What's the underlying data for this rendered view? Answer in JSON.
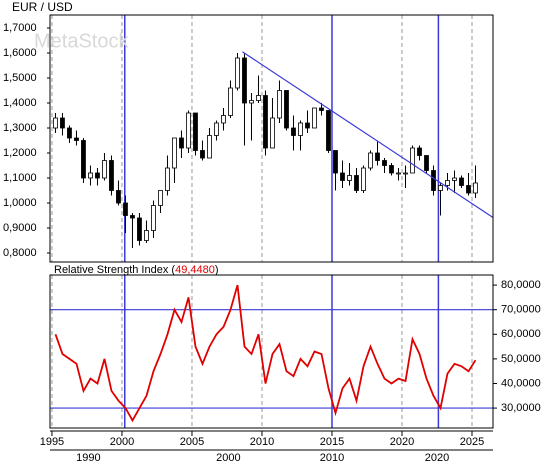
{
  "chart_data": [
    {
      "type": "candlestick",
      "title": "EUR / USD",
      "watermark": "MetaStock",
      "x": [
        1995.25,
        1995.75,
        1996.25,
        1996.75,
        1997.25,
        1997.75,
        1998.25,
        1998.75,
        1999.25,
        1999.75,
        2000.25,
        2000.75,
        2001.25,
        2001.75,
        2002.25,
        2002.75,
        2003.25,
        2003.75,
        2004.25,
        2004.75,
        2005.25,
        2005.75,
        2006.25,
        2006.75,
        2007.25,
        2007.75,
        2008.25,
        2008.75,
        2009.25,
        2009.75,
        2010.25,
        2010.75,
        2011.25,
        2011.75,
        2012.25,
        2012.75,
        2013.25,
        2013.75,
        2014.25,
        2014.75,
        2015.25,
        2015.75,
        2016.25,
        2016.75,
        2017.25,
        2017.75,
        2018.25,
        2018.75,
        2019.25,
        2019.75,
        2020.25,
        2020.75,
        2021.25,
        2021.75,
        2022.25,
        2022.75,
        2023.25,
        2023.75,
        2024.25,
        2024.75,
        2025.25
      ],
      "open": [
        1.3,
        1.34,
        1.3,
        1.26,
        1.25,
        1.1,
        1.12,
        1.1,
        1.17,
        1.05,
        1.0,
        0.95,
        0.94,
        0.85,
        0.89,
        0.99,
        1.05,
        1.14,
        1.26,
        1.22,
        1.36,
        1.21,
        1.18,
        1.27,
        1.32,
        1.35,
        1.46,
        1.58,
        1.4,
        1.41,
        1.43,
        1.22,
        1.34,
        1.45,
        1.3,
        1.27,
        1.32,
        1.3,
        1.38,
        1.37,
        1.21,
        1.12,
        1.09,
        1.11,
        1.05,
        1.14,
        1.2,
        1.17,
        1.15,
        1.12,
        1.12,
        1.12,
        1.22,
        1.19,
        1.13,
        1.05,
        1.07,
        1.09,
        1.1,
        1.07,
        1.04
      ],
      "high": [
        1.36,
        1.36,
        1.31,
        1.29,
        1.26,
        1.15,
        1.14,
        1.2,
        1.19,
        1.09,
        1.03,
        0.96,
        0.96,
        0.93,
        1.01,
        1.05,
        1.19,
        1.26,
        1.29,
        1.37,
        1.36,
        1.25,
        1.3,
        1.33,
        1.38,
        1.49,
        1.6,
        1.6,
        1.44,
        1.51,
        1.45,
        1.42,
        1.49,
        1.45,
        1.35,
        1.33,
        1.37,
        1.38,
        1.4,
        1.37,
        1.21,
        1.17,
        1.16,
        1.14,
        1.15,
        1.21,
        1.25,
        1.18,
        1.16,
        1.14,
        1.15,
        1.23,
        1.23,
        1.19,
        1.15,
        1.08,
        1.12,
        1.13,
        1.11,
        1.12,
        1.15
      ],
      "low": [
        1.28,
        1.27,
        1.24,
        1.23,
        1.08,
        1.07,
        1.07,
        1.09,
        1.03,
        0.99,
        0.88,
        0.82,
        0.83,
        0.84,
        0.86,
        0.96,
        1.03,
        1.08,
        1.18,
        1.2,
        1.19,
        1.17,
        1.18,
        1.25,
        1.29,
        1.34,
        1.45,
        1.23,
        1.25,
        1.4,
        1.19,
        1.22,
        1.32,
        1.29,
        1.21,
        1.21,
        1.28,
        1.3,
        1.35,
        1.2,
        1.05,
        1.06,
        1.07,
        1.04,
        1.04,
        1.13,
        1.15,
        1.12,
        1.11,
        1.09,
        1.06,
        1.12,
        1.17,
        1.12,
        1.03,
        0.95,
        1.05,
        1.04,
        1.06,
        1.03,
        1.02
      ],
      "close": [
        1.34,
        1.3,
        1.26,
        1.25,
        1.1,
        1.12,
        1.1,
        1.17,
        1.05,
        1.0,
        0.95,
        0.94,
        0.85,
        0.89,
        0.99,
        1.05,
        1.14,
        1.26,
        1.22,
        1.36,
        1.21,
        1.18,
        1.27,
        1.32,
        1.35,
        1.46,
        1.58,
        1.4,
        1.41,
        1.43,
        1.22,
        1.34,
        1.45,
        1.3,
        1.27,
        1.32,
        1.3,
        1.38,
        1.37,
        1.21,
        1.12,
        1.09,
        1.11,
        1.05,
        1.14,
        1.2,
        1.17,
        1.15,
        1.12,
        1.12,
        1.12,
        1.22,
        1.19,
        1.13,
        1.05,
        1.07,
        1.09,
        1.1,
        1.07,
        1.04,
        1.08
      ],
      "xlim": [
        1994.86,
        2026.5
      ],
      "ylim": [
        0.764,
        1.752
      ],
      "yticks": [
        {
          "value": 0.8,
          "label": "0,8000"
        },
        {
          "value": 0.9,
          "label": "0,9000"
        },
        {
          "value": 1.0,
          "label": "1,0000"
        },
        {
          "value": 1.1,
          "label": "1,1000"
        },
        {
          "value": 1.2,
          "label": "1,2000"
        },
        {
          "value": 1.3,
          "label": "1,3000"
        },
        {
          "value": 1.4,
          "label": "1,4000"
        },
        {
          "value": 1.5,
          "label": "1,5000"
        },
        {
          "value": 1.6,
          "label": "1,6000"
        },
        {
          "value": 1.7,
          "label": "1,7000"
        }
      ],
      "vlines": [
        2000.2,
        2015.0,
        2022.6
      ],
      "trendline": {
        "x": [
          2008.6,
          2026.5
        ],
        "y": [
          1.605,
          0.942
        ]
      },
      "grid": true
    },
    {
      "type": "line",
      "name": "Relative Strength Index",
      "current": {
        "value": 49.448,
        "label": "49,4480"
      },
      "color": "#e00000",
      "x": [
        1995.25,
        1995.75,
        1996.25,
        1996.75,
        1997.25,
        1997.75,
        1998.25,
        1998.75,
        1999.25,
        1999.75,
        2000.25,
        2000.75,
        2001.25,
        2001.75,
        2002.25,
        2002.75,
        2003.25,
        2003.75,
        2004.25,
        2004.75,
        2005.25,
        2005.75,
        2006.25,
        2006.75,
        2007.25,
        2007.75,
        2008.25,
        2008.75,
        2009.25,
        2009.75,
        2010.25,
        2010.75,
        2011.25,
        2011.75,
        2012.25,
        2012.75,
        2013.25,
        2013.75,
        2014.25,
        2014.75,
        2015.25,
        2015.75,
        2016.25,
        2016.75,
        2017.25,
        2017.75,
        2018.25,
        2018.75,
        2019.25,
        2019.75,
        2020.25,
        2020.75,
        2021.25,
        2021.75,
        2022.25,
        2022.75,
        2023.25,
        2023.75,
        2024.25,
        2024.75,
        2025.25
      ],
      "values": [
        60,
        52,
        50,
        48,
        37,
        42,
        40,
        50,
        37,
        33,
        30,
        25,
        30,
        35,
        45,
        52,
        60,
        70,
        65,
        75,
        55,
        48,
        55,
        60,
        63,
        70,
        80,
        55,
        52,
        60,
        40,
        52,
        56,
        45,
        43,
        50,
        47,
        53,
        52,
        38,
        28,
        38,
        42,
        33,
        47,
        55,
        48,
        42,
        40,
        42,
        41,
        58,
        52,
        42,
        35,
        30,
        44,
        48,
        47,
        45,
        49.448
      ],
      "xlim": [
        1994.86,
        2026.5
      ],
      "ylim": [
        21.9,
        84.1
      ],
      "yticks": [
        {
          "value": 30,
          "label": "30,0000"
        },
        {
          "value": 40,
          "label": "40,0000"
        },
        {
          "value": 50,
          "label": "50,0000"
        },
        {
          "value": 60,
          "label": "60,0000"
        },
        {
          "value": 70,
          "label": "70,0000"
        },
        {
          "value": 80,
          "label": "80,0000"
        }
      ],
      "hlines": [
        30,
        70
      ],
      "vlines": [
        2000.2,
        2015.0,
        2022.6
      ],
      "xticks": [
        1995,
        2000,
        2005,
        2010,
        2015,
        2020,
        2025
      ],
      "decade_labels": [
        {
          "value": 1997.6,
          "label": "1990"
        },
        {
          "value": 2007.6,
          "label": "2000"
        },
        {
          "value": 2015.0,
          "label": "2010"
        },
        {
          "value": 2022.5,
          "label": "2020"
        }
      ]
    }
  ]
}
